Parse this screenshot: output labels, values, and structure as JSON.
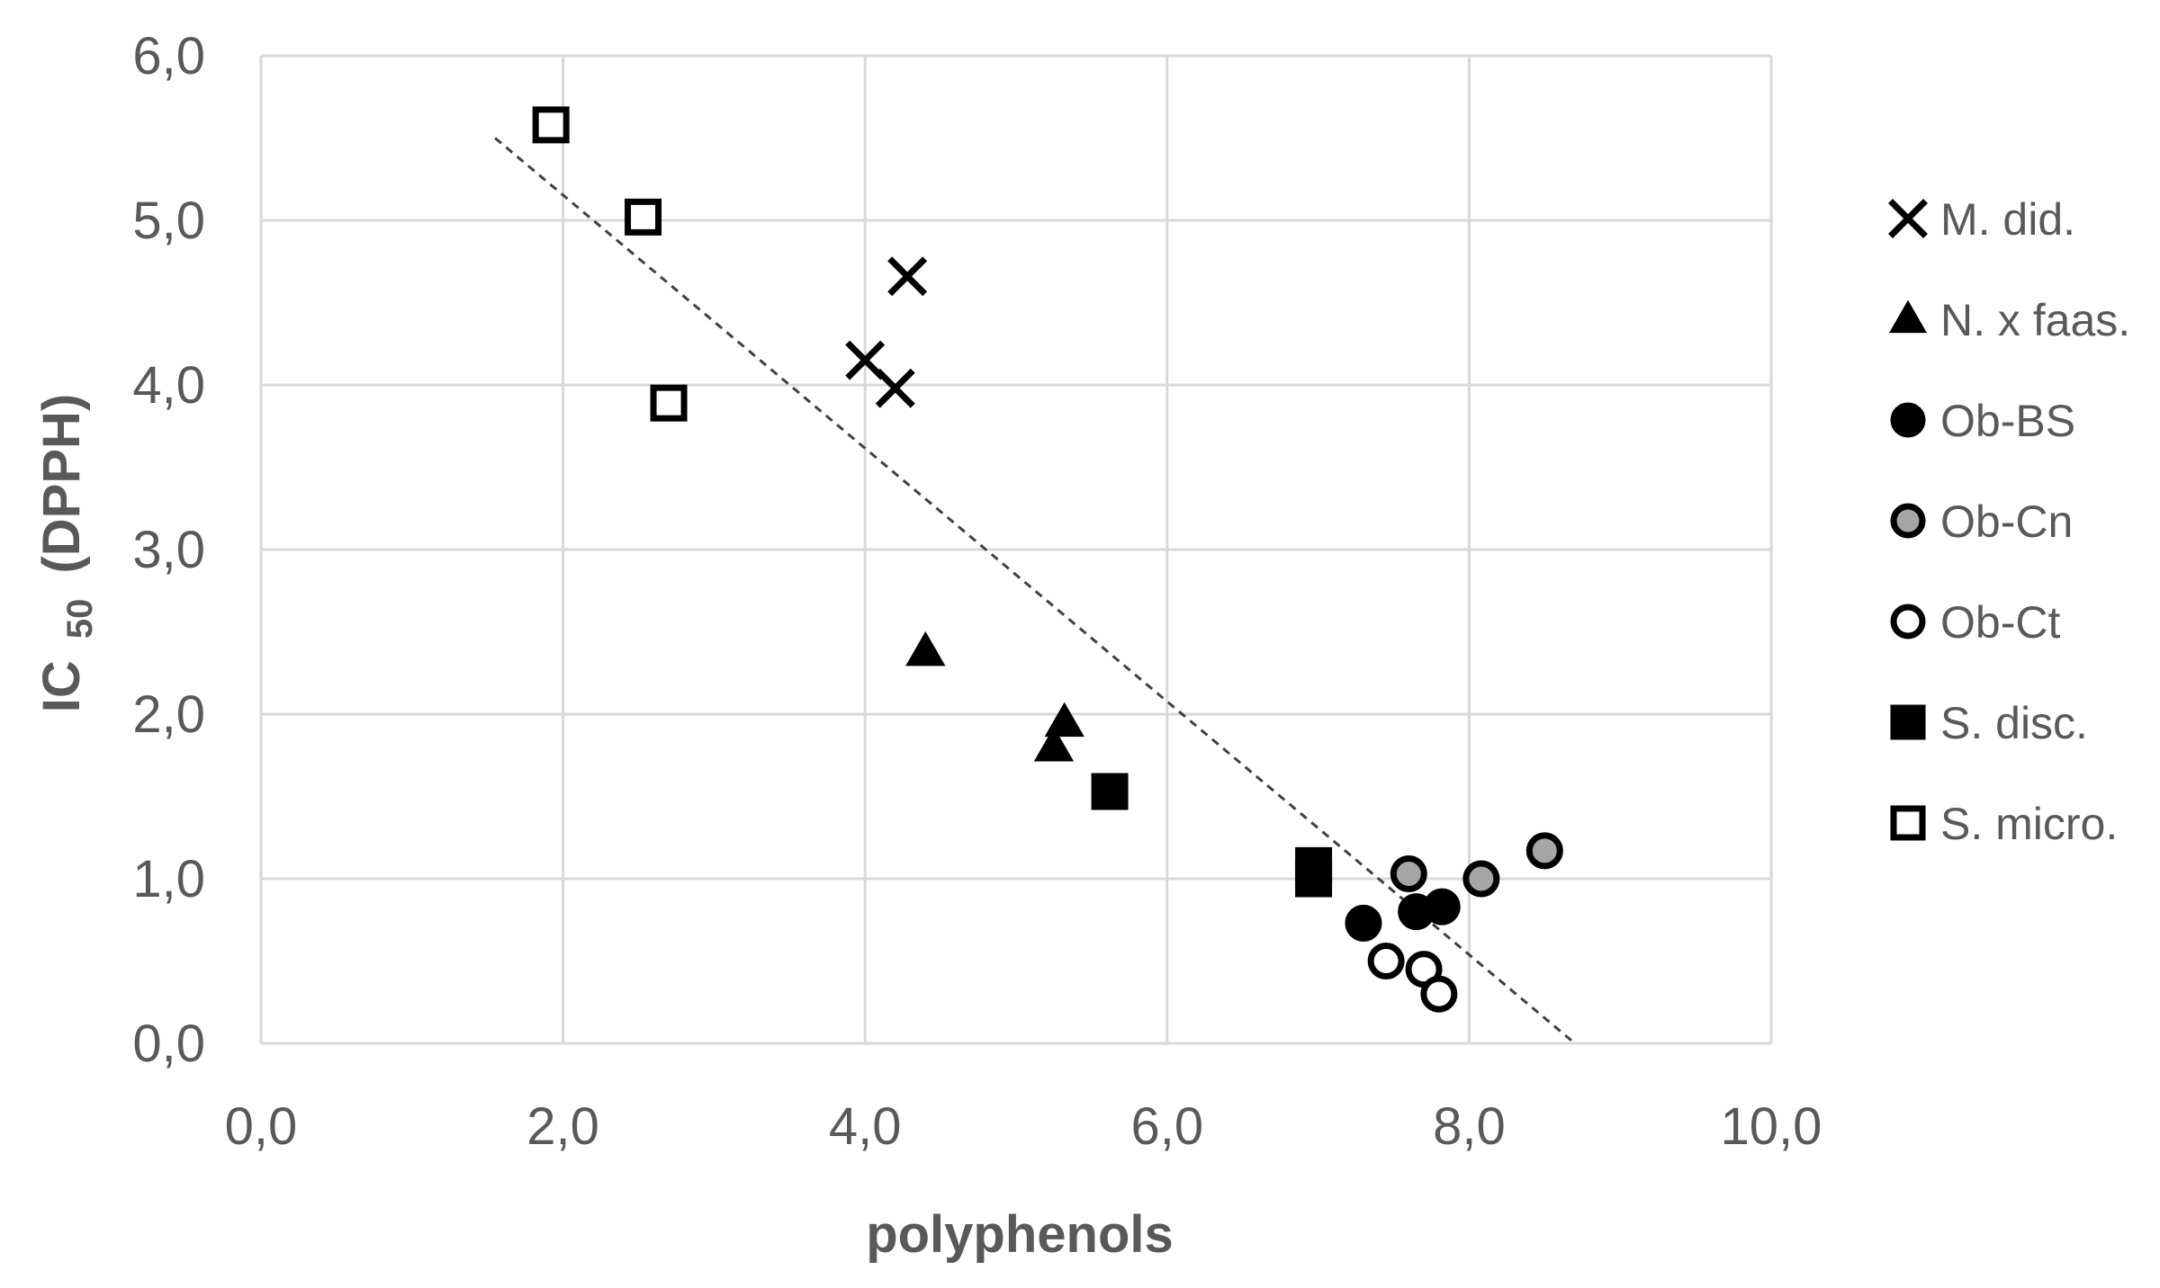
{
  "chart_data": {
    "type": "scatter",
    "xlabel": "polyphenols",
    "ylabel_main": "IC",
    "ylabel_sub": "50",
    "ylabel_tail": "(DPPH)",
    "xlim": [
      0,
      10
    ],
    "ylim": [
      0,
      6
    ],
    "xticks": [
      0,
      2,
      4,
      6,
      8,
      10
    ],
    "yticks": [
      0,
      1,
      2,
      3,
      4,
      5,
      6
    ],
    "xtick_labels": [
      "0,0",
      "2,0",
      "4,0",
      "6,0",
      "8,0",
      "10,0"
    ],
    "ytick_labels": [
      "0,0",
      "1,0",
      "2,0",
      "3,0",
      "4,0",
      "5,0",
      "6,0"
    ],
    "grid": true,
    "legend_position": "right",
    "trendline": {
      "style": "dashed",
      "color": "#404040",
      "x": [
        1.55,
        8.7
      ],
      "y": [
        5.5,
        0.0
      ]
    },
    "series": [
      {
        "name": "M. did.",
        "marker": "x",
        "fill": "#000000",
        "points": [
          [
            4.0,
            4.15
          ],
          [
            4.2,
            3.98
          ],
          [
            4.28,
            4.66
          ]
        ]
      },
      {
        "name": "N. x faas.",
        "marker": "triangle",
        "fill": "#000000",
        "points": [
          [
            4.4,
            2.38
          ],
          [
            5.25,
            1.8
          ],
          [
            5.32,
            1.95
          ]
        ]
      },
      {
        "name": "Ob-BS",
        "marker": "circle",
        "fill": "#000000",
        "points": [
          [
            7.3,
            0.73
          ],
          [
            7.65,
            0.8
          ],
          [
            7.82,
            0.83
          ]
        ]
      },
      {
        "name": "Ob-Cn",
        "marker": "circle",
        "fill": "#a6a6a6",
        "points": [
          [
            7.6,
            1.03
          ],
          [
            8.08,
            1.0
          ],
          [
            8.5,
            1.17
          ]
        ]
      },
      {
        "name": "Ob-Ct",
        "marker": "circle",
        "fill": "#ffffff",
        "points": [
          [
            7.45,
            0.5
          ],
          [
            7.7,
            0.45
          ],
          [
            7.8,
            0.3
          ]
        ]
      },
      {
        "name": "S. disc.",
        "marker": "square",
        "fill": "#000000",
        "points": [
          [
            5.62,
            1.53
          ],
          [
            6.97,
            1.0
          ],
          [
            6.97,
            1.08
          ]
        ]
      },
      {
        "name": "S. micro.",
        "marker": "square",
        "fill": "#ffffff",
        "points": [
          [
            1.92,
            5.58
          ],
          [
            2.53,
            5.02
          ],
          [
            2.7,
            3.89
          ]
        ]
      }
    ]
  }
}
